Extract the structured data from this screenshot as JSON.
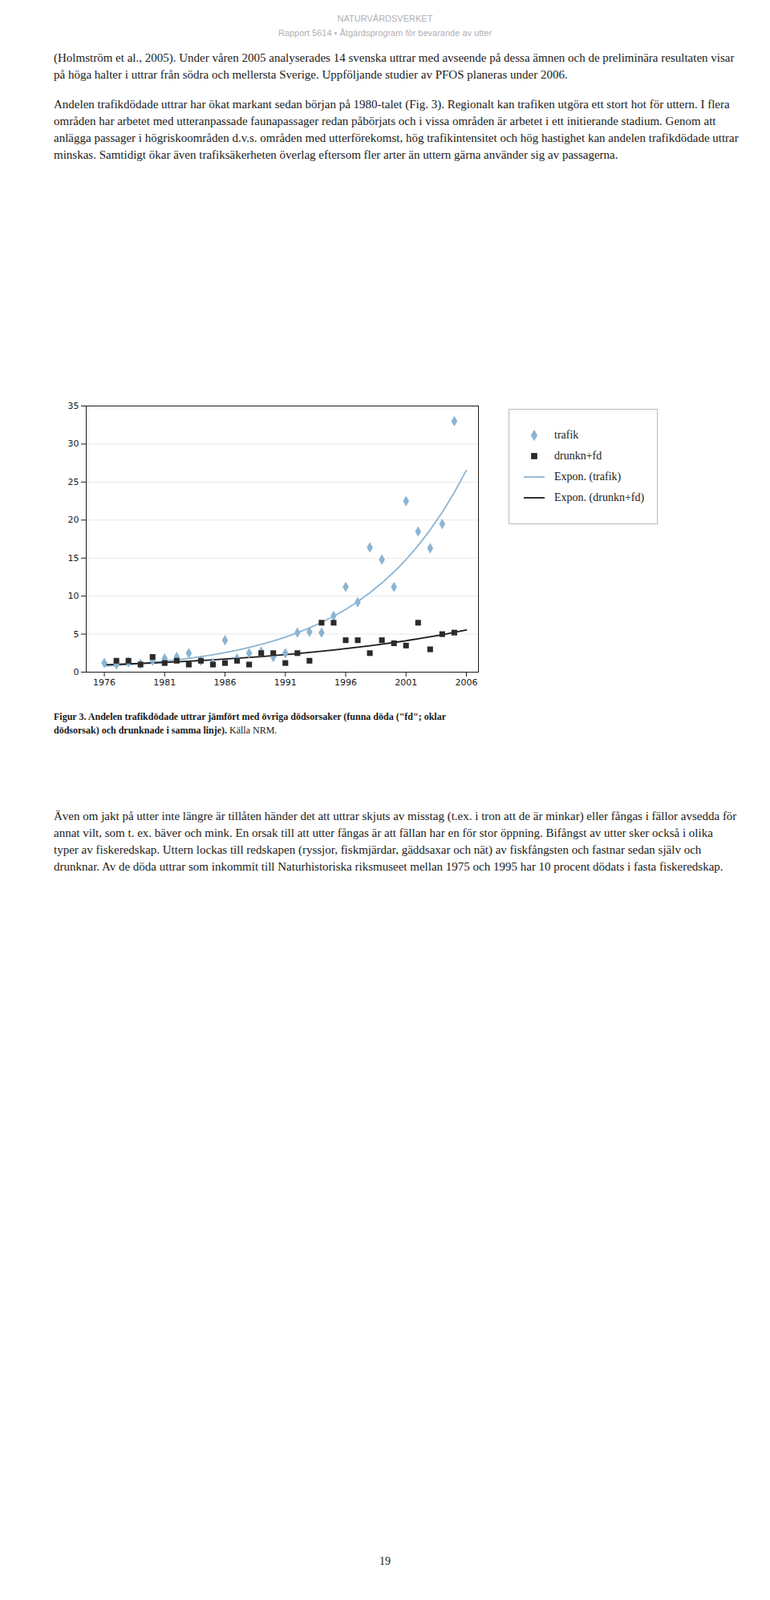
{
  "page": {
    "header_title": "NATURVÅRDSVERKET",
    "header_subtitle": "Rapport 5614 • Åtgärdsprogram för bevarande av utter",
    "paragraphs_before": [
      "(Holmström et al., 2005). Under våren 2005 analyserades 14 svenska uttrar med avseende på dessa ämnen och de preliminära resultaten visar på höga halter i uttrar från södra och mellersta Sverige. Uppföljande studier av PFOS planeras under 2006.",
      "Andelen trafikdödade uttrar har ökat markant sedan början på 1980-talet (Fig. 3). Regionalt kan trafiken utgöra ett stort hot för uttern. I flera områden har arbetet med utteranpassade faunapassager redan påbörjats och i vissa områden är arbetet i ett initierande stadium. Genom att anlägga passager i högriskoområden d.v.s. områden med utterförekomst, hög trafikintensitet och hög hastighet kan andelen trafikdödade uttrar minskas. Samtidigt ökar även trafiksäkerheten överlag eftersom fler arter än uttern gärna använder sig av passagerna."
    ],
    "caption_bold": "Figur 3. Andelen trafikdödade uttrar jämfört med övriga dödsorsaker (funna döda (\"fd\"; oklar dödsorsak) och drunknade i samma linje).",
    "caption_normal": " Källa NRM.",
    "paragraphs_after": [
      "Även om jakt på utter inte längre är tillåten händer det att uttrar skjuts av misstag (t.ex. i tron att de är minkar) eller fångas i fällor avsedda för annat vilt, som t. ex. bäver och mink. En orsak till att utter fångas är att fällan har en för stor öppning. Bifångst av utter sker också i olika typer av fiskeredskap. Uttern lockas till redskapen (ryssjor, fiskmjärdar, gäddsaxar och nät) av fiskfångsten och fastnar sedan själv och drunknar. Av de döda uttrar som inkommit till Naturhistoriska riksmuseet mellan 1975 och 1995 har 10 procent dödats i fasta fiskeredskap."
    ],
    "page_number": "19"
  },
  "chart_data": {
    "type": "scatter",
    "xlim": [
      1974.5,
      2007
    ],
    "xticks": [
      1976,
      1981,
      1986,
      1991,
      1996,
      2001,
      2006
    ],
    "ylim": [
      0,
      35
    ],
    "yticks": [
      0,
      5,
      10,
      15,
      20,
      25,
      30,
      35
    ],
    "grid": "y",
    "legend": "right",
    "series": [
      {
        "name": "trafik",
        "type": "scatter",
        "marker": "diamond",
        "color": "#8cb4d2",
        "x": [
          1976,
          1977,
          1978,
          1979,
          1980,
          1981,
          1982,
          1983,
          1984,
          1985,
          1986,
          1987,
          1988,
          1989,
          1990,
          1991,
          1992,
          1993,
          1994,
          1995,
          1996,
          1997,
          1998,
          1999,
          2000,
          2001,
          2002,
          2003,
          2004,
          2005
        ],
        "values": [
          1.2,
          1.0,
          1.3,
          1.1,
          1.5,
          1.8,
          2.0,
          2.5,
          1.5,
          1.2,
          4.2,
          1.8,
          2.5,
          2.7,
          2.0,
          2.5,
          5.2,
          5.3,
          5.2,
          7.4,
          11.2,
          9.2,
          16.4,
          14.8,
          11.2,
          22.5,
          18.5,
          16.3,
          19.5,
          33.0
        ]
      },
      {
        "name": "drunkn+fd",
        "type": "scatter",
        "marker": "square",
        "color": "#2a2a2a",
        "x": [
          1977,
          1978,
          1979,
          1980,
          1981,
          1982,
          1983,
          1984,
          1985,
          1986,
          1987,
          1988,
          1989,
          1990,
          1991,
          1992,
          1993,
          1994,
          1995,
          1996,
          1997,
          1998,
          1999,
          2000,
          2001,
          2002,
          2003,
          2004,
          2005
        ],
        "values": [
          1.5,
          1.5,
          1.0,
          2.0,
          1.2,
          1.5,
          1.0,
          1.5,
          1.0,
          1.2,
          1.5,
          1.0,
          2.5,
          2.5,
          1.2,
          2.5,
          1.5,
          6.5,
          6.5,
          4.2,
          4.2,
          2.5,
          4.2,
          3.8,
          3.5,
          6.5,
          3.0,
          5.0,
          5.2
        ]
      },
      {
        "name": "Expon. (trafik)",
        "type": "line",
        "line_style": "solid",
        "color": "#8cb4d2",
        "x": [
          1976,
          1977,
          1978,
          1979,
          1980,
          1981,
          1982,
          1983,
          1984,
          1985,
          1986,
          1987,
          1988,
          1989,
          1990,
          1991,
          1992,
          1993,
          1994,
          1995,
          1996,
          1997,
          1998,
          1999,
          2000,
          2001,
          2002,
          2003,
          2004,
          2005,
          2006
        ],
        "values": [
          0.799,
          0.898,
          1.009,
          1.134,
          1.275,
          1.433,
          1.61,
          1.81,
          2.034,
          2.286,
          2.569,
          2.887,
          3.245,
          3.647,
          4.099,
          4.606,
          5.177,
          5.818,
          6.539,
          7.349,
          8.259,
          9.282,
          10.432,
          11.724,
          13.176,
          14.808,
          16.642,
          18.704,
          21.021,
          23.624,
          26.551
        ]
      },
      {
        "name": "Expon. (drunkn+fd)",
        "type": "line",
        "line_style": "solid",
        "color": "#1a1a1a",
        "x": [
          1976,
          1977,
          1978,
          1979,
          1980,
          1981,
          1982,
          1983,
          1984,
          1985,
          1986,
          1987,
          1988,
          1989,
          1990,
          1991,
          1992,
          1993,
          1994,
          1995,
          1996,
          1997,
          1998,
          1999,
          2000,
          2001,
          2002,
          2003,
          2004,
          2005,
          2006
        ],
        "values": [
          0.959,
          1.016,
          1.078,
          1.142,
          1.211,
          1.284,
          1.361,
          1.443,
          1.53,
          1.622,
          1.72,
          1.824,
          1.933,
          2.05,
          2.173,
          2.304,
          2.443,
          2.59,
          2.745,
          2.911,
          3.086,
          3.272,
          3.469,
          3.677,
          3.899,
          4.134,
          4.382,
          4.646,
          4.926,
          5.222,
          5.537
        ]
      }
    ]
  }
}
